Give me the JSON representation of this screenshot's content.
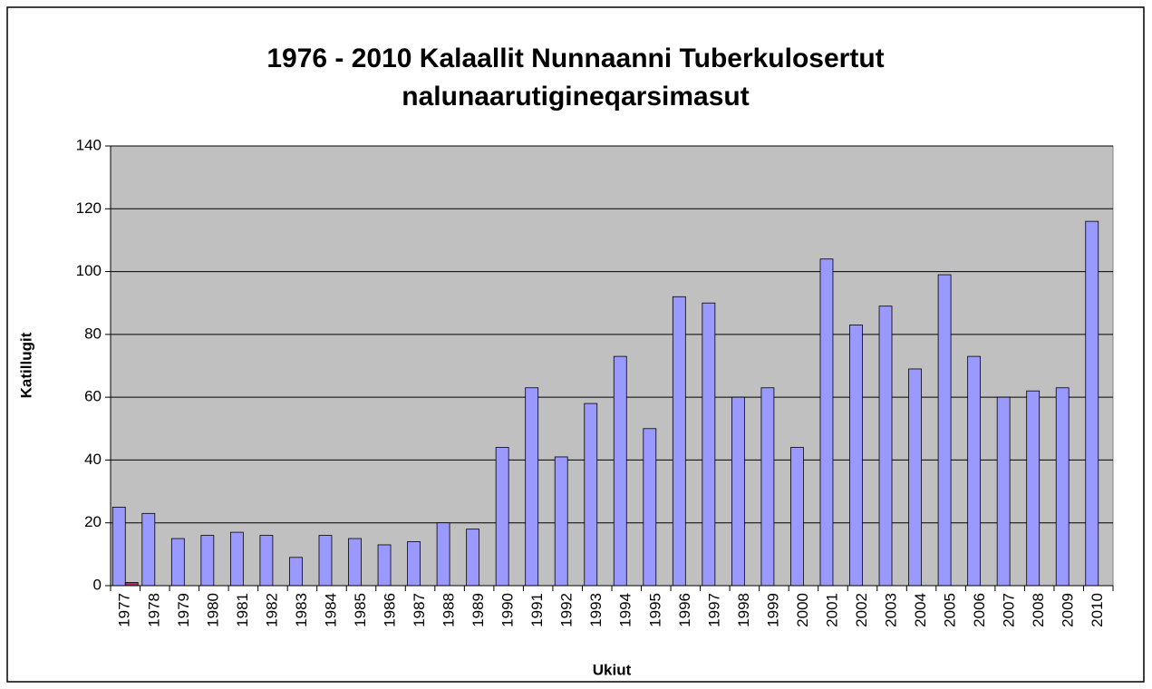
{
  "chart_data": {
    "type": "bar",
    "title": "1976 - 2010 Kalaallit Nunnaanni Tuberkulosertut nalunaarutigineqarsimasut",
    "xlabel": "Ukiut",
    "ylabel": "Katillugit",
    "categories": [
      "1977",
      "1978",
      "1979",
      "1980",
      "1981",
      "1982",
      "1983",
      "1984",
      "1985",
      "1986",
      "1987",
      "1988",
      "1989",
      "1990",
      "1991",
      "1992",
      "1993",
      "1994",
      "1995",
      "1996",
      "1997",
      "1998",
      "1999",
      "2000",
      "2001",
      "2002",
      "2003",
      "2004",
      "2005",
      "2006",
      "2007",
      "2008",
      "2009",
      "2010"
    ],
    "series": [
      {
        "color": "#9999ff",
        "values": [
          25,
          23,
          15,
          16,
          17,
          16,
          9,
          16,
          15,
          13,
          14,
          20,
          18,
          44,
          63,
          41,
          58,
          73,
          50,
          92,
          90,
          60,
          63,
          44,
          104,
          83,
          89,
          69,
          99,
          73,
          60,
          62,
          63,
          116
        ]
      },
      {
        "color": "#993366",
        "values": [
          1,
          null,
          null,
          null,
          null,
          null,
          null,
          null,
          null,
          null,
          null,
          null,
          null,
          null,
          null,
          null,
          null,
          null,
          null,
          null,
          null,
          null,
          null,
          null,
          null,
          null,
          null,
          null,
          null,
          null,
          null,
          null,
          null,
          null
        ]
      }
    ],
    "ylim": [
      0,
      140
    ],
    "yticks": [
      0,
      20,
      40,
      60,
      80,
      100,
      120,
      140
    ],
    "grid": true,
    "background": "#c0c0c0"
  }
}
